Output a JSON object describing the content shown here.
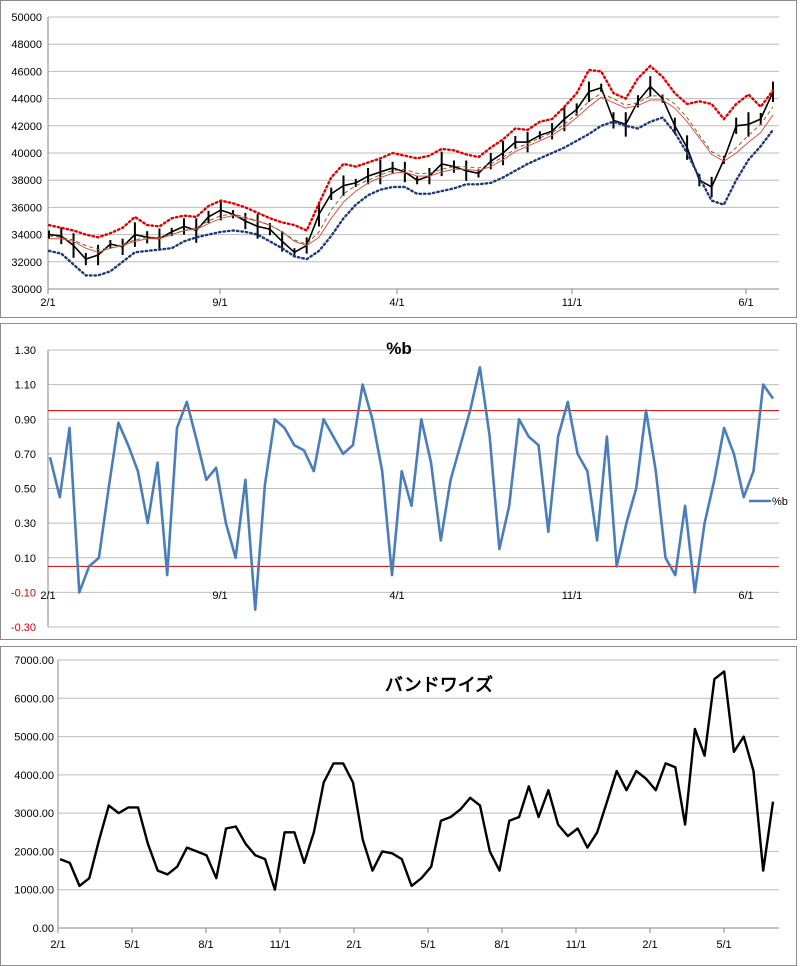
{
  "chart_data": [
    {
      "type": "line",
      "title": "",
      "description_kind": "price with bollinger bands",
      "ylim": [
        30000,
        50000
      ],
      "y_ticks": [
        "50000",
        "48000",
        "46000",
        "44000",
        "42000",
        "40000",
        "38000",
        "36000",
        "34000",
        "32000",
        "30000"
      ],
      "x_ticks": [
        "2/1",
        "9/1",
        "4/1",
        "11/1",
        "6/1"
      ],
      "grid": true,
      "series": [
        {
          "key": "price",
          "color": "#000000",
          "style": "candles",
          "values": [
            34000,
            33900,
            33200,
            32200,
            32500,
            33300,
            33100,
            34000,
            33800,
            33700,
            34200,
            34600,
            34300,
            35300,
            35800,
            35500,
            35000,
            34600,
            34400,
            33500,
            32700,
            33200,
            35500,
            37000,
            37600,
            37800,
            38300,
            38600,
            38900,
            38600,
            38000,
            38300,
            39200,
            39000,
            38700,
            38500,
            39400,
            40000,
            40800,
            40800,
            41300,
            41600,
            42500,
            43200,
            44500,
            44800,
            42400,
            42100,
            43800,
            44900,
            44000,
            42000,
            40400,
            38000,
            37500,
            39500,
            42000,
            42100,
            42500,
            44500
          ]
        },
        {
          "key": "mid",
          "color": "#d9534f",
          "style": "solid",
          "values": [
            33700,
            33700,
            33500,
            33000,
            32700,
            33000,
            33200,
            33500,
            33700,
            33700,
            34000,
            34300,
            34400,
            34800,
            35200,
            35400,
            35200,
            35000,
            34700,
            34200,
            33500,
            33200,
            33800,
            35200,
            36400,
            37200,
            37800,
            38200,
            38500,
            38600,
            38300,
            38300,
            38600,
            38800,
            38800,
            38700,
            39000,
            39500,
            40100,
            40500,
            40900,
            41300,
            41900,
            42600,
            43400,
            44100,
            43700,
            43300,
            43500,
            43900,
            43900,
            43300,
            42300,
            41100,
            39900,
            39400,
            40000,
            40800,
            41500,
            42800
          ]
        },
        {
          "key": "ma_dash",
          "color": "#7a6a2a",
          "style": "dash",
          "values": [
            33900,
            33800,
            33600,
            33200,
            32900,
            33000,
            33300,
            33600,
            33800,
            33800,
            34000,
            34300,
            34500,
            35000,
            35400,
            35500,
            35300,
            35000,
            34700,
            34200,
            33600,
            33300,
            34200,
            35800,
            37000,
            37600,
            38000,
            38400,
            38700,
            38800,
            38500,
            38500,
            38800,
            39000,
            39000,
            38900,
            39200,
            39700,
            40300,
            40700,
            41100,
            41500,
            42100,
            42900,
            43800,
            44400,
            44000,
            43500,
            43700,
            44200,
            44200,
            43600,
            42600,
            41300,
            40100,
            39600,
            40400,
            41300,
            42100,
            43400
          ]
        },
        {
          "key": "upper",
          "color": "#e00000",
          "style": "dot",
          "values": [
            34700,
            34500,
            34300,
            34000,
            33800,
            34100,
            34500,
            35300,
            34700,
            34600,
            35200,
            35400,
            35300,
            36100,
            36500,
            36300,
            36000,
            35600,
            35200,
            34900,
            34700,
            34300,
            36300,
            38200,
            39200,
            39000,
            39300,
            39600,
            40000,
            39800,
            39600,
            39800,
            40300,
            40200,
            39900,
            39700,
            40400,
            41000,
            41800,
            41700,
            42300,
            42500,
            43400,
            44400,
            46100,
            46000,
            44400,
            44000,
            45500,
            46400,
            45600,
            44400,
            43600,
            43800,
            43600,
            42500,
            43600,
            44300,
            43400,
            44600
          ]
        },
        {
          "key": "lower",
          "color": "#1f3a7a",
          "style": "dot",
          "values": [
            32800,
            32600,
            31800,
            31000,
            31000,
            31300,
            32000,
            32700,
            32800,
            32900,
            33000,
            33500,
            33800,
            34000,
            34200,
            34300,
            34200,
            34000,
            33500,
            33000,
            32400,
            32200,
            32800,
            33900,
            35200,
            36200,
            36900,
            37300,
            37500,
            37500,
            37000,
            37000,
            37200,
            37400,
            37700,
            37700,
            37800,
            38200,
            38700,
            39200,
            39600,
            40000,
            40400,
            40900,
            41400,
            42000,
            42300,
            42000,
            41800,
            42300,
            42600,
            41500,
            40000,
            38200,
            36500,
            36200,
            38000,
            39500,
            40500,
            41700
          ]
        }
      ]
    },
    {
      "type": "line",
      "title": "%b",
      "ylim": [
        -0.3,
        1.3
      ],
      "y_ticks": [
        "1.30",
        "1.10",
        "0.90",
        "0.70",
        "0.50",
        "0.30",
        "0.10",
        "-0.10",
        "-0.30"
      ],
      "x_ticks": [
        "2/1",
        "9/1",
        "4/1",
        "11/1",
        "6/1"
      ],
      "legend": {
        "label": "%b",
        "position": "right"
      },
      "reference_lines": [
        0.95,
        0.05
      ],
      "grid": true,
      "series": [
        {
          "name": "%b",
          "color": "#4a7ebb",
          "values": [
            0.68,
            0.45,
            0.85,
            -0.1,
            0.05,
            0.1,
            0.5,
            0.88,
            0.75,
            0.6,
            0.3,
            0.65,
            0.0,
            0.85,
            1.0,
            0.78,
            0.55,
            0.62,
            0.3,
            0.1,
            0.55,
            -0.2,
            0.52,
            0.9,
            0.85,
            0.75,
            0.72,
            0.6,
            0.9,
            0.8,
            0.7,
            0.75,
            1.1,
            0.9,
            0.6,
            0.0,
            0.6,
            0.4,
            0.9,
            0.65,
            0.2,
            0.55,
            0.75,
            0.95,
            1.2,
            0.8,
            0.15,
            0.4,
            0.9,
            0.8,
            0.75,
            0.25,
            0.8,
            1.0,
            0.7,
            0.6,
            0.2,
            0.8,
            0.05,
            0.3,
            0.5,
            0.95,
            0.6,
            0.1,
            0.0,
            0.4,
            -0.1,
            0.3,
            0.55,
            0.85,
            0.7,
            0.45,
            0.6,
            1.1,
            1.02
          ]
        }
      ]
    },
    {
      "type": "line",
      "title": "バンドワイズ",
      "ylim": [
        0,
        7000
      ],
      "y_ticks": [
        "7000.00",
        "6000.00",
        "5000.00",
        "4000.00",
        "3000.00",
        "2000.00",
        "1000.00",
        "0.00"
      ],
      "x_ticks": [
        "2/1",
        "5/1",
        "8/1",
        "11/1",
        "2/1",
        "5/1",
        "8/1",
        "11/1",
        "2/1",
        "5/1"
      ],
      "grid": true,
      "series": [
        {
          "name": "バンドワイズ",
          "color": "#000000",
          "values": [
            1800,
            1700,
            1100,
            1300,
            2300,
            3200,
            3000,
            3150,
            3150,
            2200,
            1500,
            1400,
            1600,
            2100,
            2000,
            1900,
            1300,
            2600,
            2650,
            2200,
            1900,
            1800,
            1000,
            2500,
            2500,
            1700,
            2500,
            3800,
            4300,
            4300,
            3800,
            2300,
            1500,
            2000,
            1950,
            1800,
            1100,
            1300,
            1600,
            2800,
            2900,
            3100,
            3400,
            3200,
            2000,
            1500,
            2800,
            2900,
            3700,
            2900,
            3600,
            2700,
            2400,
            2600,
            2100,
            2500,
            3300,
            4100,
            3600,
            4100,
            3900,
            3600,
            4300,
            4200,
            2700,
            5200,
            4500,
            6500,
            6700,
            4600,
            5000,
            4100,
            1500,
            3300
          ]
        }
      ]
    }
  ]
}
